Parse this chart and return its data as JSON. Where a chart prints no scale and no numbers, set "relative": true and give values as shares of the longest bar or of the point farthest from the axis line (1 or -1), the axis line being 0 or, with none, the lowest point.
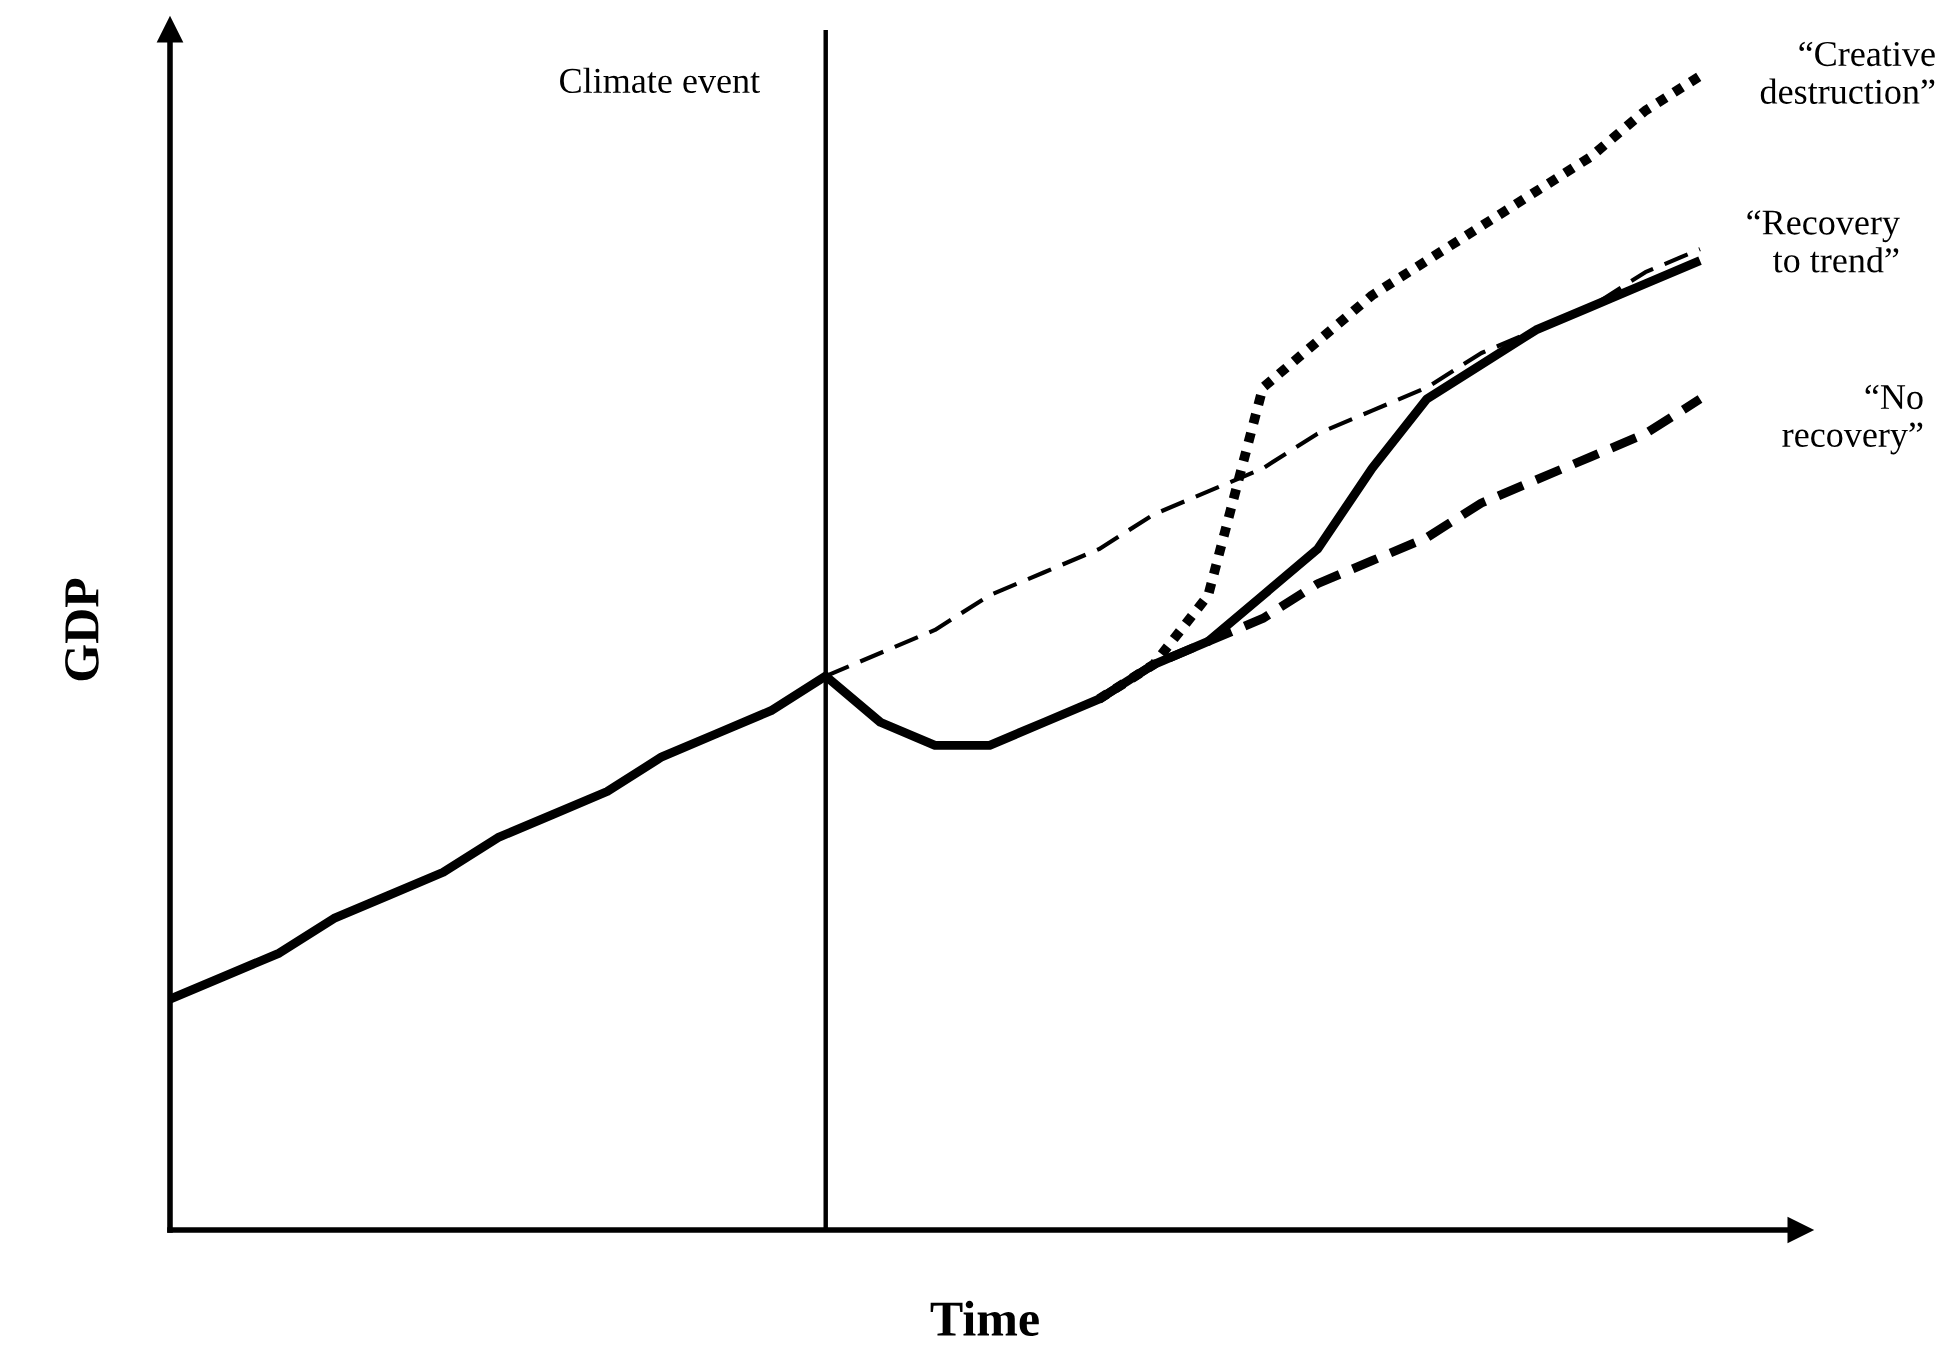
{
  "chart_data": {
    "type": "line",
    "relative": true,
    "xlabel": "Time",
    "ylabel": "GDP",
    "annotations": [
      "Climate event"
    ],
    "grid": false,
    "legend": false,
    "marker": "none",
    "categories": [
      null,
      null,
      null,
      null,
      null,
      null,
      null,
      null,
      null,
      null,
      null,
      null,
      null,
      null,
      null,
      null,
      null,
      null,
      null,
      null,
      null,
      null,
      null,
      null,
      null,
      null,
      null,
      null,
      null
    ],
    "series": [
      {
        "name": "“Recovery\nto trend”",
        "color": "#000000",
        "line_style": "solid",
        "values": [
          0.2,
          0.22,
          0.24,
          0.27,
          0.29,
          0.31,
          0.34,
          0.36,
          0.38,
          0.41,
          0.43,
          0.45,
          0.48,
          0.44,
          0.42,
          0.42,
          0.44,
          0.46,
          0.49,
          0.51,
          0.55,
          0.59,
          0.66,
          0.72,
          0.75,
          0.78,
          0.8,
          0.82,
          0.84
        ]
      },
      {
        "color": "#000000",
        "line_style": "dashed",
        "values": [
          null,
          null,
          null,
          null,
          null,
          null,
          null,
          null,
          null,
          null,
          null,
          null,
          0.48,
          0.5,
          0.52,
          0.55,
          0.57,
          0.59,
          0.62,
          0.64,
          0.66,
          0.69,
          0.71,
          0.73,
          0.76,
          0.78,
          0.8,
          0.83,
          0.85
        ]
      },
      {
        "name": "“No\nrecovery”",
        "color": "#000000",
        "line_style": "dashed",
        "values": [
          null,
          null,
          null,
          null,
          null,
          null,
          null,
          null,
          null,
          null,
          null,
          null,
          null,
          null,
          null,
          null,
          null,
          0.46,
          0.49,
          0.51,
          0.53,
          0.56,
          0.58,
          0.6,
          0.63,
          0.65,
          0.67,
          0.69,
          0.72
        ]
      },
      {
        "name": "“Creative\ndestruction”",
        "color": "#000000",
        "line_style": "dotted",
        "values": [
          null,
          null,
          null,
          null,
          null,
          null,
          null,
          null,
          null,
          null,
          null,
          null,
          null,
          null,
          null,
          null,
          null,
          0.46,
          0.49,
          0.55,
          0.73,
          0.77,
          0.81,
          0.84,
          0.87,
          0.9,
          0.93,
          0.97,
          1.0
        ]
      }
    ]
  }
}
